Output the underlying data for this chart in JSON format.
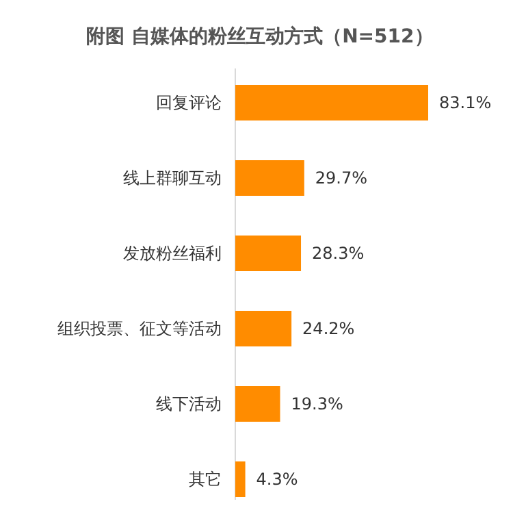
{
  "chart_data": {
    "type": "bar",
    "orientation": "horizontal",
    "title": "附图 自媒体的粉丝互动方式（N=512）",
    "categories": [
      "回复评论",
      "线上群聊互动",
      "发放粉丝福利",
      "组织投票、征文等活动",
      "线下活动",
      "其它"
    ],
    "values": [
      83.1,
      29.7,
      28.3,
      24.2,
      19.3,
      4.3
    ],
    "value_labels": [
      "83.1%",
      "29.7%",
      "28.3%",
      "24.2%",
      "19.3%",
      "4.3%"
    ],
    "color": "#ff8c00"
  }
}
